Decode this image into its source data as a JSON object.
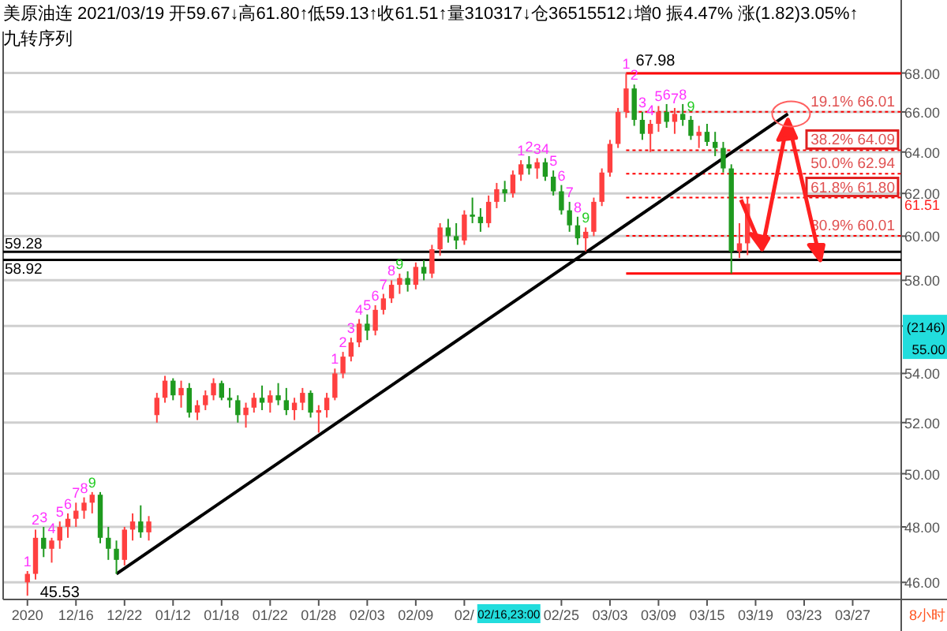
{
  "chart_data": {
    "type": "candlestick",
    "title": "美原油连 2021/03/19 开59.67↓高61.80↑低59.13↑收61.51↑量310317↓仓36515512↓增0 振4.47% 涨(1.82)3.05%↑",
    "subtitle": "九转序列",
    "categories": [
      "2020",
      null,
      null,
      null,
      null,
      null,
      "12/16",
      null,
      null,
      null,
      null,
      null,
      "12/22",
      null,
      null,
      null,
      null,
      null,
      "01/12",
      null,
      null,
      null,
      null,
      null,
      "01/18",
      null,
      null,
      null,
      null,
      null,
      "01/22",
      null,
      null,
      null,
      null,
      null,
      "01/28",
      null,
      null,
      null,
      null,
      null,
      "02/03",
      null,
      null,
      null,
      null,
      null,
      "02/09",
      null,
      null,
      null,
      null,
      null,
      "02/",
      null,
      null,
      null,
      null,
      null,
      null,
      null,
      null,
      null,
      null,
      null,
      "02/25",
      null,
      null,
      null,
      null,
      null,
      "03/03",
      null,
      null,
      null,
      null,
      null,
      "03/09",
      null,
      null,
      null,
      null,
      null,
      "03/15",
      null,
      null,
      null,
      null,
      null,
      "03/19",
      null,
      null,
      null,
      null,
      null,
      "03/23",
      null,
      null,
      null,
      null,
      null,
      "03/27",
      null,
      null,
      null,
      null,
      null
    ],
    "ohlc": [
      [
        46.0,
        46.4,
        45.53,
        46.3
      ],
      [
        46.3,
        47.9,
        46.1,
        47.6
      ],
      [
        47.6,
        48.0,
        46.9,
        47.2
      ],
      [
        47.2,
        47.6,
        46.7,
        47.5
      ],
      [
        47.5,
        48.2,
        47.2,
        48.0
      ],
      [
        48.0,
        48.5,
        47.6,
        48.3
      ],
      [
        48.3,
        48.9,
        48.0,
        48.6
      ],
      [
        48.6,
        49.1,
        48.3,
        48.9
      ],
      [
        48.9,
        49.3,
        48.5,
        49.2
      ],
      [
        49.2,
        49.3,
        47.4,
        47.6
      ],
      [
        47.6,
        48.0,
        46.8,
        47.2
      ],
      [
        47.2,
        47.5,
        46.3,
        46.8
      ],
      [
        46.8,
        48.0,
        46.6,
        47.9
      ],
      [
        47.9,
        48.5,
        47.5,
        48.2
      ],
      [
        48.2,
        48.8,
        47.6,
        47.8
      ],
      [
        47.8,
        48.4,
        47.5,
        48.2
      ],
      [
        52.3,
        53.2,
        52.0,
        53.0
      ],
      [
        53.0,
        53.9,
        52.8,
        53.7
      ],
      [
        53.7,
        53.8,
        52.9,
        53.1
      ],
      [
        53.1,
        53.7,
        52.6,
        53.4
      ],
      [
        53.4,
        53.6,
        52.2,
        52.4
      ],
      [
        52.4,
        52.9,
        52.1,
        52.7
      ],
      [
        52.7,
        53.3,
        52.5,
        53.1
      ],
      [
        53.1,
        53.8,
        52.9,
        53.6
      ],
      [
        53.6,
        53.7,
        52.9,
        53.0
      ],
      [
        53.0,
        53.4,
        52.6,
        52.9
      ],
      [
        52.9,
        53.1,
        52.0,
        52.3
      ],
      [
        52.3,
        52.8,
        51.8,
        52.6
      ],
      [
        52.6,
        53.2,
        52.4,
        53.0
      ],
      [
        53.0,
        53.5,
        52.5,
        52.8
      ],
      [
        52.8,
        53.3,
        52.4,
        53.1
      ],
      [
        53.1,
        53.6,
        52.7,
        52.9
      ],
      [
        52.9,
        53.4,
        52.3,
        52.5
      ],
      [
        52.5,
        53.0,
        52.1,
        52.8
      ],
      [
        52.8,
        53.4,
        52.5,
        53.2
      ],
      [
        53.2,
        53.3,
        52.2,
        52.4
      ],
      [
        52.4,
        52.7,
        51.6,
        52.5
      ],
      [
        52.5,
        53.2,
        52.2,
        53.0
      ],
      [
        53.0,
        54.2,
        52.9,
        54.0
      ],
      [
        54.0,
        54.9,
        53.8,
        54.7
      ],
      [
        54.7,
        55.5,
        54.5,
        55.3
      ],
      [
        55.3,
        56.3,
        55.1,
        56.1
      ],
      [
        56.1,
        56.5,
        55.4,
        55.8
      ],
      [
        55.8,
        56.9,
        55.6,
        56.7
      ],
      [
        56.7,
        57.4,
        56.5,
        57.2
      ],
      [
        57.2,
        58.0,
        57.0,
        57.8
      ],
      [
        57.8,
        58.3,
        57.4,
        58.1
      ],
      [
        58.1,
        58.4,
        57.5,
        57.8
      ],
      [
        57.8,
        58.8,
        57.6,
        58.6
      ],
      [
        58.6,
        58.9,
        58.0,
        58.3
      ],
      [
        58.3,
        59.6,
        58.1,
        59.4
      ],
      [
        59.4,
        60.6,
        59.1,
        60.4
      ],
      [
        60.4,
        60.8,
        59.7,
        60.0
      ],
      [
        60.0,
        60.6,
        59.4,
        59.8
      ],
      [
        59.8,
        61.2,
        59.6,
        61.0
      ],
      [
        61.0,
        61.8,
        60.6,
        60.9
      ],
      [
        60.9,
        61.3,
        60.2,
        60.6
      ],
      [
        60.6,
        61.9,
        60.4,
        61.6
      ],
      [
        61.6,
        62.5,
        61.3,
        62.2
      ],
      [
        62.2,
        62.6,
        61.6,
        62.0
      ],
      [
        62.0,
        63.1,
        61.8,
        62.9
      ],
      [
        62.9,
        63.6,
        62.6,
        63.4
      ],
      [
        63.4,
        63.8,
        62.9,
        63.2
      ],
      [
        63.2,
        63.7,
        62.7,
        63.5
      ],
      [
        63.5,
        63.7,
        62.6,
        62.8
      ],
      [
        62.8,
        63.1,
        61.9,
        62.1
      ],
      [
        62.1,
        62.4,
        61.0,
        61.2
      ],
      [
        61.2,
        61.6,
        60.2,
        60.5
      ],
      [
        60.5,
        60.9,
        59.6,
        59.9
      ],
      [
        59.9,
        60.4,
        59.3,
        60.2
      ],
      [
        60.2,
        61.8,
        60.0,
        61.6
      ],
      [
        61.6,
        63.2,
        61.4,
        63.0
      ],
      [
        63.0,
        64.6,
        62.8,
        64.4
      ],
      [
        64.4,
        66.2,
        64.2,
        66.0
      ],
      [
        66.0,
        67.98,
        65.7,
        67.2
      ],
      [
        67.2,
        67.4,
        65.3,
        65.6
      ],
      [
        65.6,
        66.0,
        64.6,
        64.9
      ],
      [
        64.9,
        65.6,
        64.0,
        65.4
      ],
      [
        65.4,
        66.3,
        65.0,
        66.0
      ],
      [
        66.0,
        66.4,
        65.2,
        65.5
      ],
      [
        65.5,
        66.2,
        64.9,
        65.9
      ],
      [
        65.9,
        66.4,
        65.3,
        65.6
      ],
      [
        65.6,
        65.8,
        64.6,
        64.8
      ],
      [
        64.8,
        65.3,
        64.2,
        65.0
      ],
      [
        65.0,
        65.4,
        64.3,
        64.5
      ],
      [
        64.5,
        65.0,
        63.8,
        64.2
      ],
      [
        64.2,
        64.5,
        63.0,
        63.2
      ],
      [
        63.2,
        63.4,
        58.3,
        59.3
      ],
      [
        59.3,
        60.6,
        59.0,
        59.67
      ],
      [
        59.67,
        61.8,
        59.13,
        61.51
      ],
      null,
      null,
      null,
      null,
      null,
      null,
      null,
      null,
      null,
      null,
      null,
      null,
      null,
      null,
      null,
      null,
      null,
      null
    ],
    "value_labels": [
      "1",
      "2",
      "3",
      "4",
      "5",
      "6",
      "7",
      "8",
      "9",
      null,
      null,
      null,
      null,
      null,
      null,
      null,
      null,
      null,
      null,
      null,
      null,
      null,
      null,
      null,
      null,
      null,
      null,
      null,
      null,
      null,
      null,
      null,
      null,
      null,
      null,
      null,
      null,
      null,
      "1",
      "2",
      "3",
      "4",
      "5",
      "6",
      "7",
      "8",
      "9",
      null,
      null,
      null,
      null,
      null,
      null,
      null,
      null,
      null,
      null,
      null,
      null,
      null,
      null,
      "1",
      "2",
      "3",
      "4",
      "5",
      "6",
      "7",
      "8",
      "9",
      null,
      null,
      null,
      null,
      "1",
      "2",
      "3",
      "4",
      "5",
      "6",
      "7",
      "8",
      "9",
      null,
      null,
      null,
      null,
      null,
      null,
      null,
      null,
      null,
      null,
      null,
      null,
      null,
      null,
      null,
      null,
      null,
      null,
      null,
      null,
      null,
      null,
      null,
      null,
      null
    ],
    "series": [
      {
        "type": "line",
        "color": "#000000",
        "values": [
          null,
          null,
          null,
          null,
          null,
          null,
          null,
          null,
          null,
          null,
          null,
          46.3,
          null,
          null,
          null,
          null,
          null,
          null,
          null,
          null,
          null,
          null,
          null,
          null,
          null,
          null,
          null,
          null,
          null,
          null,
          null,
          null,
          null,
          null,
          null,
          null,
          null,
          null,
          null,
          null,
          null,
          null,
          null,
          null,
          null,
          null,
          null,
          null,
          null,
          null,
          null,
          null,
          null,
          null,
          null,
          null,
          null,
          null,
          null,
          null,
          null,
          null,
          null,
          null,
          null,
          null,
          null,
          null,
          null,
          null,
          null,
          null,
          null,
          null,
          null,
          null,
          null,
          null,
          null,
          null,
          null,
          null,
          null,
          null,
          null,
          null,
          null,
          null,
          null,
          null,
          null,
          null,
          null,
          null,
          65.9,
          null,
          null,
          null,
          null,
          null,
          null,
          null,
          null,
          null,
          null,
          null,
          null,
          null
        ]
      }
    ],
    "log": "y",
    "ylim": [
      45.4,
      70.2
    ],
    "yticks": [
      {
        "value": 46,
        "label": "46.00"
      },
      {
        "value": 48,
        "label": "48.00"
      },
      {
        "value": 50,
        "label": "50.00"
      },
      {
        "value": 52,
        "label": "52.00"
      },
      {
        "value": 54,
        "label": "54.00"
      },
      {
        "value": 56,
        "label": null
      },
      {
        "value": 58,
        "label": "58.00"
      },
      {
        "value": 60,
        "label": "60.00"
      },
      {
        "value": 62,
        "label": "62.00"
      },
      {
        "value": 64,
        "label": "64.00"
      },
      {
        "value": 66,
        "label": "66.00"
      },
      {
        "value": 68,
        "label": "68.00"
      }
    ],
    "grid": "y",
    "ref_lines": [
      {
        "axis": "y",
        "value": 67.98,
        "color": "#ff0000",
        "line_style": "solid"
      },
      {
        "axis": "y",
        "value": 66.01,
        "label": "19.1% 66.01",
        "color": "#ff0000",
        "line_style": "dotted"
      },
      {
        "axis": "y",
        "value": 64.09,
        "label": "38.2% 64.09",
        "color": "#ff0000",
        "line_style": "dotted"
      },
      {
        "axis": "y",
        "value": 62.94,
        "label": "50.0% 62.94",
        "color": "#ff0000",
        "line_style": "dotted"
      },
      {
        "axis": "y",
        "value": 61.8,
        "label": "61.8% 61.80",
        "color": "#ff0000",
        "line_style": "dotted"
      },
      {
        "axis": "y",
        "value": 60.01,
        "label": "80.9% 60.01",
        "color": "#ff0000",
        "line_style": "dotted"
      },
      {
        "axis": "y",
        "value": 58.3,
        "color": "#ff0000",
        "line_style": "solid"
      },
      {
        "axis": "y",
        "value": 59.28,
        "label": "59.28",
        "color": "#000000",
        "line_style": "solid"
      },
      {
        "axis": "y",
        "value": 58.92,
        "label": "58.92",
        "color": "#000000",
        "line_style": "solid"
      }
    ],
    "annotations": [
      "02/16,23:00",
      "(2146)",
      "55.00",
      "8小时",
      "61.51",
      {
        "text": "67.98",
        "y": 67.98
      },
      "45.53"
    ]
  }
}
